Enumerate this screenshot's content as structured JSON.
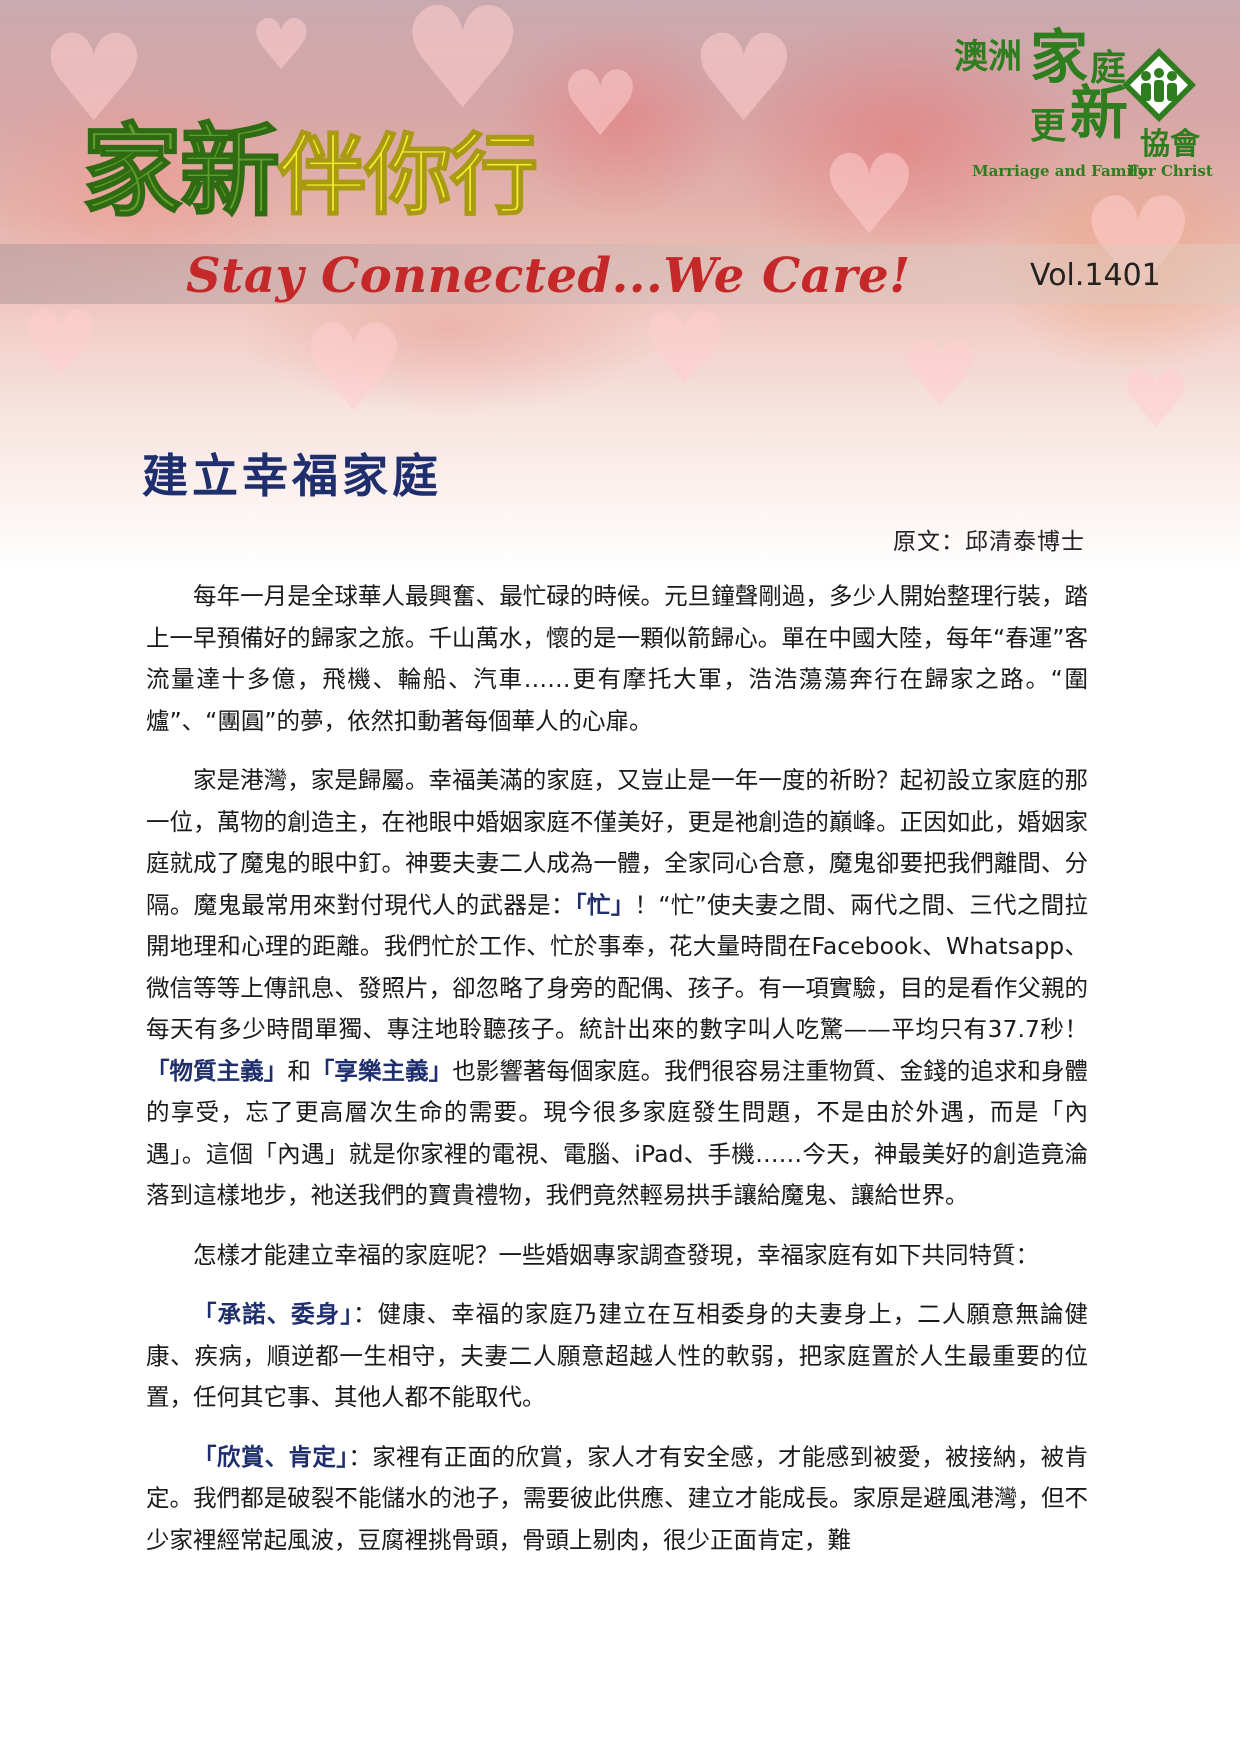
{
  "header": {
    "title_part1": "家新",
    "title_part2": "伴你行",
    "tagline": "Stay Connected...We Care!",
    "volume": "Vol.1401"
  },
  "logo": {
    "region": "澳洲",
    "jia": "家",
    "ting": "庭",
    "geng": "更",
    "xin": "新",
    "xiehui": "協會",
    "english_left": "Marriage and Family",
    "english_right": "For Christ",
    "brand_color": "#2e7d1f"
  },
  "article": {
    "title": "建立幸福家庭",
    "byline": "原文：邱清泰博士",
    "p1": "每年一月是全球華人最興奮、最忙碌的時候。元旦鐘聲剛過，多少人開始整理行裝，踏上一早預備好的歸家之旅。千山萬水，懷的是一顆似箭歸心。單在中國大陸，每年“春運”客流量達十多億，飛機、輪船、汽車……更有摩托大軍，浩浩蕩蕩奔行在歸家之路。“圍爐”、“團圓”的夢，依然扣動著每個華人的心扉。",
    "p2_a": "家是港灣，家是歸屬。幸福美滿的家庭，又豈止是一年一度的祈盼？起初設立家庭的那一位，萬物的創造主，在祂眼中婚姻家庭不僅美好，更是祂創造的巔峰。正因如此，婚姻家庭就成了魔鬼的眼中釘。神要夫妻二人成為一體，全家同心合意，魔鬼卻要把我們離間、分隔。魔鬼最常用來對付現代人的武器是：",
    "p2_hl1": "「忙」",
    "p2_b": "！“忙”使夫妻之間、兩代之間、三代之間拉開地理和心理的距離。我們忙於工作、忙於事奉，花大量時間在Facebook、Whatsapp、微信等等上傳訊息、發照片，卻忽略了身旁的配偶、孩子。有一項實驗，目的是看作父親的每天有多少時間單獨、專注地聆聽孩子。統計出來的數字叫人吃驚——平均只有37.7秒！",
    "p2_hl2": "「物質主義」",
    "p2_c": "和",
    "p2_hl3": "「享樂主義」",
    "p2_d": "也影響著每個家庭。我們很容易注重物質、金錢的追求和身體的享受，忘了更高層次生命的需要。現今很多家庭發生問題，不是由於外遇，而是「內遇」。這個「內遇」就是你家裡的電視、電腦、iPad、手機……今天，神最美好的創造竟淪落到這樣地步，祂送我們的寶貴禮物，我們竟然輕易拱手讓給魔鬼、讓給世界。",
    "p3": "怎樣才能建立幸福的家庭呢？一些婚姻專家調查發現，幸福家庭有如下共同特質：",
    "p4_hl": "「承諾、委身」",
    "p4_text": "：健康、幸福的家庭乃建立在互相委身的夫妻身上，二人願意無論健康、疾病，順逆都一生相守，夫妻二人願意超越人性的軟弱，把家庭置於人生最重要的位置，任何其它事、其他人都不能取代。",
    "p5_hl": "「欣賞、肯定」",
    "p5_text": "：家裡有正面的欣賞，家人才有安全感，才能感到被愛，被接納，被肯定。我們都是破裂不能儲水的池子，需要彼此供應、建立才能成長。家原是避風港灣，但不少家裡經常起風波，豆腐裡挑骨頭，骨頭上剔肉，很少正面肯定，難"
  },
  "colors": {
    "title_green": "#5d9e2d",
    "title_yellow": "#f5ea2a",
    "tagline_red": "#c42828",
    "article_title_navy": "#1f2f6e"
  }
}
